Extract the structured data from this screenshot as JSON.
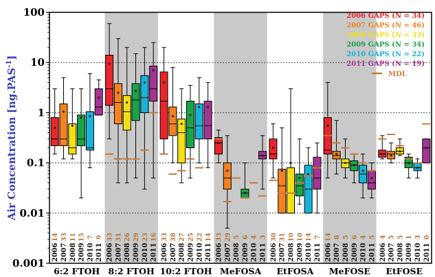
{
  "chart_data": {
    "type": "box",
    "ylabel": "Air Concentration [ng.PAS",
    "ylabel_sup": "-1",
    "ylabel_end": "]",
    "yscale": "log",
    "ylim": [
      0.001,
      100
    ],
    "yticks": [
      "0.001",
      "0.01",
      "0.1",
      "1",
      "10",
      "100"
    ],
    "grid": "dotted horizontal at decades",
    "legend_position": "top-right",
    "colors": [
      "#e8262b",
      "#f58220",
      "#f2e014",
      "#1aa44a",
      "#18b4d8",
      "#a33594"
    ],
    "series": [
      {
        "name": "2006 GAPS (N = 34)",
        "color": "#e8262b"
      },
      {
        "name": "2007 GAPS (N = 46)",
        "color": "#f58220"
      },
      {
        "name": "2008 GAPS (N = 33)",
        "color": "#f2e014"
      },
      {
        "name": "2009 GAPS (N = 34)",
        "color": "#1aa44a"
      },
      {
        "name": "2010 GAPS (N = 22)",
        "color": "#18b4d8"
      },
      {
        "name": "2011 GAPS (N = 19)",
        "color": "#a33594"
      }
    ],
    "mdl_label": "MDL",
    "mdl_color": "#c87a3a",
    "years": [
      "2006",
      "2007",
      "2008",
      "2009",
      "2010",
      "2011"
    ],
    "groups": [
      {
        "name": "6:2 FTOH",
        "shaded": false,
        "counts": [
          "14",
          "33",
          "11",
          "15",
          "7",
          "9"
        ],
        "boxes": [
          {
            "min": 0.15,
            "q1": 0.22,
            "median": 0.3,
            "q3": 0.8,
            "max": 3.0,
            "mean": 0.5
          },
          {
            "min": 0.12,
            "q1": 0.22,
            "median": 0.3,
            "q3": 1.5,
            "max": 5.0,
            "mean": 1.05
          },
          {
            "min": 0.12,
            "q1": 0.15,
            "median": 0.2,
            "q3": 0.6,
            "max": 3.0,
            "mean": 0.55
          },
          {
            "min": 0.02,
            "q1": 0.22,
            "median": 0.3,
            "q3": 0.9,
            "max": 3.0,
            "mean": 0.8
          },
          {
            "min": 0.08,
            "q1": 0.18,
            "median": 0.2,
            "q3": 1.05,
            "max": 6.0,
            "mean": 0.85
          },
          {
            "min": 0.9,
            "q1": 0.9,
            "median": 1.3,
            "q3": 3.0,
            "max": 4.5,
            "mean": 2.0
          }
        ],
        "mdl": [
          null,
          null,
          null,
          null,
          null,
          null
        ]
      },
      {
        "name": "8:2 FTOH",
        "shaded": true,
        "counts": [
          "33",
          "31",
          "26",
          "29",
          "23",
          "16"
        ],
        "boxes": [
          {
            "min": 0.3,
            "q1": 1.4,
            "median": 3.0,
            "q3": 14.0,
            "max": 60.0,
            "mean": 9.5
          },
          {
            "min": 0.04,
            "q1": 0.6,
            "median": 1.6,
            "q3": 3.8,
            "max": 30.0,
            "mean": 2.5
          },
          {
            "min": 0.04,
            "q1": 0.45,
            "median": 1.05,
            "q3": 2.2,
            "max": 20.0,
            "mean": 1.6
          },
          {
            "min": 0.05,
            "q1": 0.7,
            "median": 1.8,
            "q3": 3.8,
            "max": 15.0,
            "mean": 2.7
          },
          {
            "min": 0.03,
            "q1": 1.0,
            "median": 2.0,
            "q3": 5.5,
            "max": 20.0,
            "mean": 4.0
          },
          {
            "min": 0.05,
            "q1": 1.7,
            "median": 3.0,
            "q3": 8.5,
            "max": 25.0,
            "mean": 7.0
          }
        ],
        "mdl": [
          0.15,
          0.12,
          0.12,
          0.12,
          0.18,
          1.0
        ]
      },
      {
        "name": "10:2 FTOH",
        "shaded": false,
        "counts": [
          "33",
          "38",
          "27",
          "25",
          "22",
          "14"
        ],
        "boxes": [
          {
            "min": 0.15,
            "q1": 0.3,
            "median": 1.7,
            "q3": 6.5,
            "max": 20.0,
            "mean": 4.0
          },
          {
            "min": 0.1,
            "q1": 0.35,
            "median": 0.6,
            "q3": 1.3,
            "max": 8.0,
            "mean": 0.85
          },
          {
            "min": 0.04,
            "q1": 0.1,
            "median": 0.4,
            "q3": 0.75,
            "max": 3.0,
            "mean": 0.6
          },
          {
            "min": 0.05,
            "q1": 0.2,
            "median": 0.5,
            "q3": 1.7,
            "max": 3.5,
            "mean": 0.9
          },
          {
            "min": 0.1,
            "q1": 0.3,
            "median": 0.55,
            "q3": 1.5,
            "max": 5.0,
            "mean": 1.3
          },
          {
            "min": 0.08,
            "q1": 0.3,
            "median": 0.55,
            "q3": 1.7,
            "max": 4.0,
            "mean": 1.3
          }
        ],
        "mdl": [
          0.15,
          0.06,
          0.07,
          0.12,
          0.08,
          null
        ]
      },
      {
        "name": "MeFOSA",
        "shaded": true,
        "counts": [
          "33",
          "29",
          "5",
          "6",
          "4",
          "3"
        ],
        "boxes": [
          {
            "min": 0.1,
            "q1": 0.15,
            "median": 0.25,
            "q3": 0.32,
            "max": 0.45,
            "mean": 0.25
          },
          {
            "min": 0.005,
            "q1": 0.03,
            "median": 0.05,
            "q3": 0.1,
            "max": 0.35,
            "mean": 0.07
          },
          null,
          {
            "min": 0.02,
            "q1": 0.02,
            "median": 0.025,
            "q3": 0.03,
            "max": 0.1,
            "mean": 0.025
          },
          null,
          {
            "min": 0.03,
            "q1": 0.12,
            "median": 0.14,
            "q3": 0.17,
            "max": 0.35,
            "mean": 0.14
          }
        ],
        "mdl": [
          0.3,
          0.017,
          0.05,
          0.02,
          0.04,
          0.022
        ]
      },
      {
        "name": "EtFOSA",
        "shaded": false,
        "counts": [
          "30",
          "31",
          "10",
          "10",
          "14",
          "7"
        ],
        "boxes": [
          {
            "min": 0.05,
            "q1": 0.12,
            "median": 0.15,
            "q3": 0.3,
            "max": 0.6,
            "mean": 0.2
          },
          {
            "min": 0.01,
            "q1": 0.01,
            "median": 0.035,
            "q3": 0.075,
            "max": 0.5,
            "mean": 0.07
          },
          {
            "min": 0.01,
            "q1": 0.01,
            "median": 0.025,
            "q3": 0.08,
            "max": 3.0,
            "mean": 0.1
          },
          {
            "min": 0.015,
            "q1": 0.022,
            "median": 0.035,
            "q3": 0.06,
            "max": 0.3,
            "mean": 0.05
          },
          {
            "min": 0.01,
            "q1": 0.01,
            "median": 0.03,
            "q3": 0.09,
            "max": 0.2,
            "mean": 0.06
          },
          {
            "min": 0.01,
            "q1": 0.03,
            "median": 0.05,
            "q3": 0.13,
            "max": 0.25,
            "mean": 0.08
          }
        ],
        "mdl": [
          0.045,
          0.025,
          0.025,
          0.04,
          0.055,
          0.08
        ]
      },
      {
        "name": "MeFOSE",
        "shaded": true,
        "counts": [
          "14",
          "8",
          "5",
          "6",
          "4",
          "5"
        ],
        "boxes": [
          {
            "min": 0.05,
            "q1": 0.15,
            "median": 0.18,
            "q3": 0.8,
            "max": 4.0,
            "mean": 0.55
          },
          {
            "min": 0.06,
            "q1": 0.12,
            "median": 0.14,
            "q3": 0.17,
            "max": 0.7,
            "mean": 0.15
          },
          {
            "min": 0.05,
            "q1": 0.08,
            "median": 0.1,
            "q3": 0.12,
            "max": 0.3,
            "mean": 0.1
          },
          {
            "min": 0.04,
            "q1": 0.07,
            "median": 0.09,
            "q3": 0.11,
            "max": 0.15,
            "mean": 0.09
          },
          {
            "min": 0.02,
            "q1": 0.04,
            "median": 0.06,
            "q3": 0.09,
            "max": 0.15,
            "mean": 0.07
          },
          {
            "min": 0.02,
            "q1": 0.03,
            "median": 0.04,
            "q3": 0.07,
            "max": 0.1,
            "mean": 0.05
          }
        ],
        "mdl": [
          0.35,
          0.25,
          0.2,
          0.15,
          0.1,
          0.07
        ]
      },
      {
        "name": "EtFOSE",
        "shaded": false,
        "counts": [
          "4",
          "5",
          "5",
          "1",
          "3",
          "0"
        ],
        "boxes": [
          {
            "min": 0.12,
            "q1": 0.13,
            "median": 0.15,
            "q3": 0.18,
            "max": 0.35,
            "mean": 0.15
          },
          {
            "min": 0.1,
            "q1": 0.12,
            "median": 0.15,
            "q3": 0.17,
            "max": 0.25,
            "mean": 0.14
          },
          {
            "min": 0.14,
            "q1": 0.15,
            "median": 0.17,
            "q3": 0.2,
            "max": 0.3,
            "mean": 0.17
          },
          {
            "min": 0.05,
            "q1": 0.08,
            "median": 0.1,
            "q3": 0.13,
            "max": 0.15,
            "mean": 0.1
          },
          {
            "min": 0.05,
            "q1": 0.07,
            "median": 0.08,
            "q3": 0.1,
            "max": 0.12,
            "mean": 0.08
          },
          {
            "min": 0.1,
            "q1": 0.1,
            "median": 0.2,
            "q3": 0.3,
            "max": 0.3,
            "mean": 0.2
          }
        ],
        "mdl": [
          0.3,
          0.37,
          0.22,
          0.12,
          0.1,
          0.6
        ]
      }
    ]
  }
}
